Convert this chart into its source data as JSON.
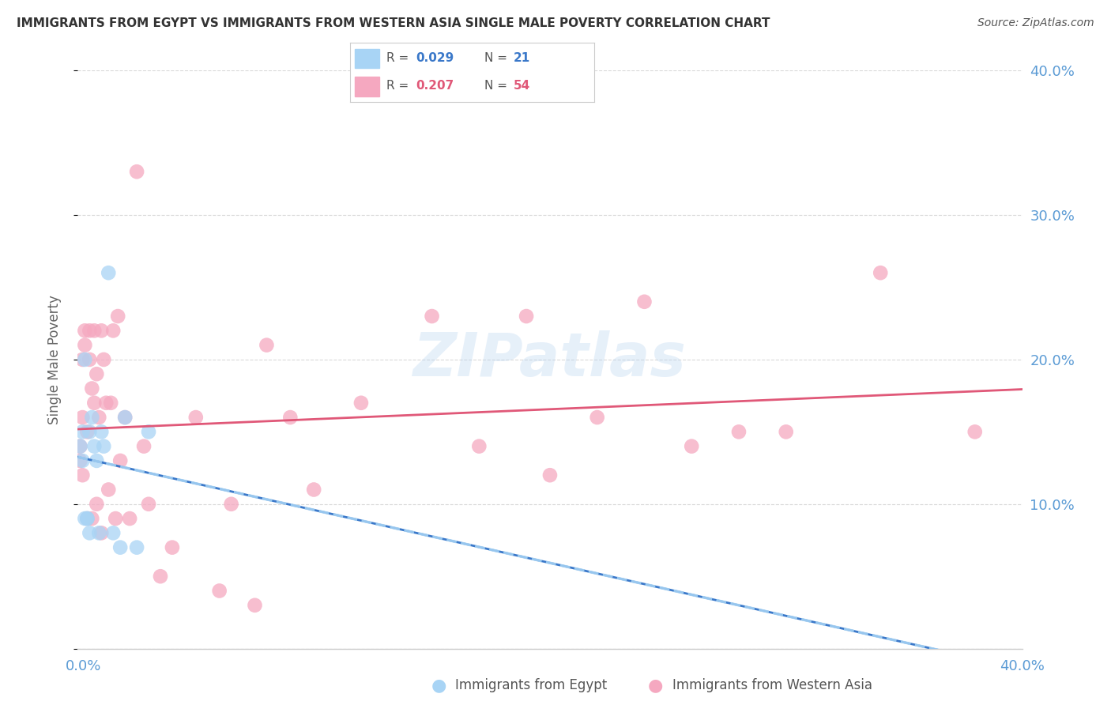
{
  "title": "IMMIGRANTS FROM EGYPT VS IMMIGRANTS FROM WESTERN ASIA SINGLE MALE POVERTY CORRELATION CHART",
  "source": "Source: ZipAtlas.com",
  "ylabel": "Single Male Poverty",
  "xlim": [
    0.0,
    0.4
  ],
  "ylim": [
    0.0,
    0.4
  ],
  "ytick_values": [
    0.0,
    0.1,
    0.2,
    0.3,
    0.4
  ],
  "xtick_values": [
    0.0,
    0.1,
    0.2,
    0.3,
    0.4
  ],
  "egypt_R": 0.029,
  "egypt_N": 21,
  "western_asia_R": 0.207,
  "western_asia_N": 54,
  "egypt_color": "#a8d4f5",
  "western_asia_color": "#f5a8c0",
  "egypt_line_color": "#3a78c9",
  "western_asia_line_color": "#e05878",
  "egypt_dash_color": "#a8d4f5",
  "watermark": "ZIPatlas",
  "background_color": "#ffffff",
  "grid_color": "#d0d0d0",
  "axis_label_color": "#5b9bd5",
  "title_color": "#333333",
  "egypt_x": [
    0.001,
    0.002,
    0.002,
    0.003,
    0.003,
    0.004,
    0.004,
    0.005,
    0.005,
    0.006,
    0.007,
    0.008,
    0.009,
    0.01,
    0.011,
    0.013,
    0.015,
    0.018,
    0.02,
    0.025,
    0.03
  ],
  "egypt_y": [
    0.14,
    0.15,
    0.13,
    0.2,
    0.09,
    0.09,
    0.09,
    0.08,
    0.15,
    0.16,
    0.14,
    0.13,
    0.08,
    0.15,
    0.14,
    0.26,
    0.08,
    0.07,
    0.16,
    0.07,
    0.15
  ],
  "western_asia_x": [
    0.001,
    0.001,
    0.002,
    0.002,
    0.002,
    0.003,
    0.003,
    0.004,
    0.004,
    0.005,
    0.005,
    0.006,
    0.006,
    0.007,
    0.007,
    0.008,
    0.008,
    0.009,
    0.01,
    0.01,
    0.011,
    0.012,
    0.013,
    0.014,
    0.015,
    0.016,
    0.017,
    0.018,
    0.02,
    0.022,
    0.025,
    0.028,
    0.03,
    0.035,
    0.04,
    0.05,
    0.06,
    0.065,
    0.075,
    0.08,
    0.09,
    0.1,
    0.12,
    0.15,
    0.17,
    0.19,
    0.2,
    0.22,
    0.24,
    0.26,
    0.28,
    0.3,
    0.34,
    0.38
  ],
  "western_asia_y": [
    0.14,
    0.13,
    0.2,
    0.16,
    0.12,
    0.22,
    0.21,
    0.15,
    0.09,
    0.22,
    0.2,
    0.18,
    0.09,
    0.22,
    0.17,
    0.19,
    0.1,
    0.16,
    0.22,
    0.08,
    0.2,
    0.17,
    0.11,
    0.17,
    0.22,
    0.09,
    0.23,
    0.13,
    0.16,
    0.09,
    0.33,
    0.14,
    0.1,
    0.05,
    0.07,
    0.16,
    0.04,
    0.1,
    0.03,
    0.21,
    0.16,
    0.11,
    0.17,
    0.23,
    0.14,
    0.23,
    0.12,
    0.16,
    0.24,
    0.14,
    0.15,
    0.15,
    0.26,
    0.15
  ]
}
